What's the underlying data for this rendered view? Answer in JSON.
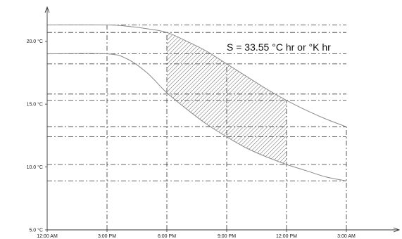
{
  "chart_data": {
    "type": "line",
    "title": "",
    "xlabel": "",
    "ylabel": "",
    "x_ticks": [
      "12:00 AM",
      "3:00 PM",
      "6:00 PM",
      "9:00 PM",
      "12:00 PM",
      "3:00 AM"
    ],
    "y_ticks": [
      "5.0 °C",
      "10.0 °C",
      "15.0 °C",
      "20.0 °C"
    ],
    "ylim": [
      5,
      22.5
    ],
    "xlim": [
      0,
      15
    ],
    "series": [
      {
        "x": [
          0,
          3,
          4,
          5,
          6,
          7,
          8,
          9,
          10,
          11,
          12,
          13,
          14,
          15
        ],
        "y": [
          21.3,
          21.3,
          21.2,
          21.0,
          20.7,
          20.0,
          19.2,
          18.2,
          17.2,
          16.2,
          15.3,
          14.5,
          13.8,
          13.2
        ]
      },
      {
        "x": [
          0,
          3,
          4,
          5,
          6,
          7,
          8,
          9,
          10,
          11,
          12,
          13,
          14,
          15
        ],
        "y": [
          19.0,
          19.0,
          18.6,
          17.5,
          15.9,
          14.6,
          13.4,
          12.4,
          11.5,
          10.8,
          10.2,
          9.7,
          9.2,
          8.9
        ]
      }
    ],
    "shaded_region": {
      "x_start": 6,
      "x_end": 12,
      "pattern": "diagonal-hatch"
    },
    "reference_lines": {
      "horizontal": [
        21.3,
        20.7,
        19.0,
        18.2,
        15.8,
        15.3,
        13.2,
        12.4,
        10.2,
        8.9
      ],
      "vertical": [
        3,
        6,
        9,
        12,
        15
      ]
    },
    "annotation": "S = 33.55  °C hr or °K hr",
    "grid": false,
    "colors": {
      "curve": "#8a8a8a",
      "reference": "#333333",
      "hatch": "#555555",
      "axis": "#333333"
    }
  }
}
